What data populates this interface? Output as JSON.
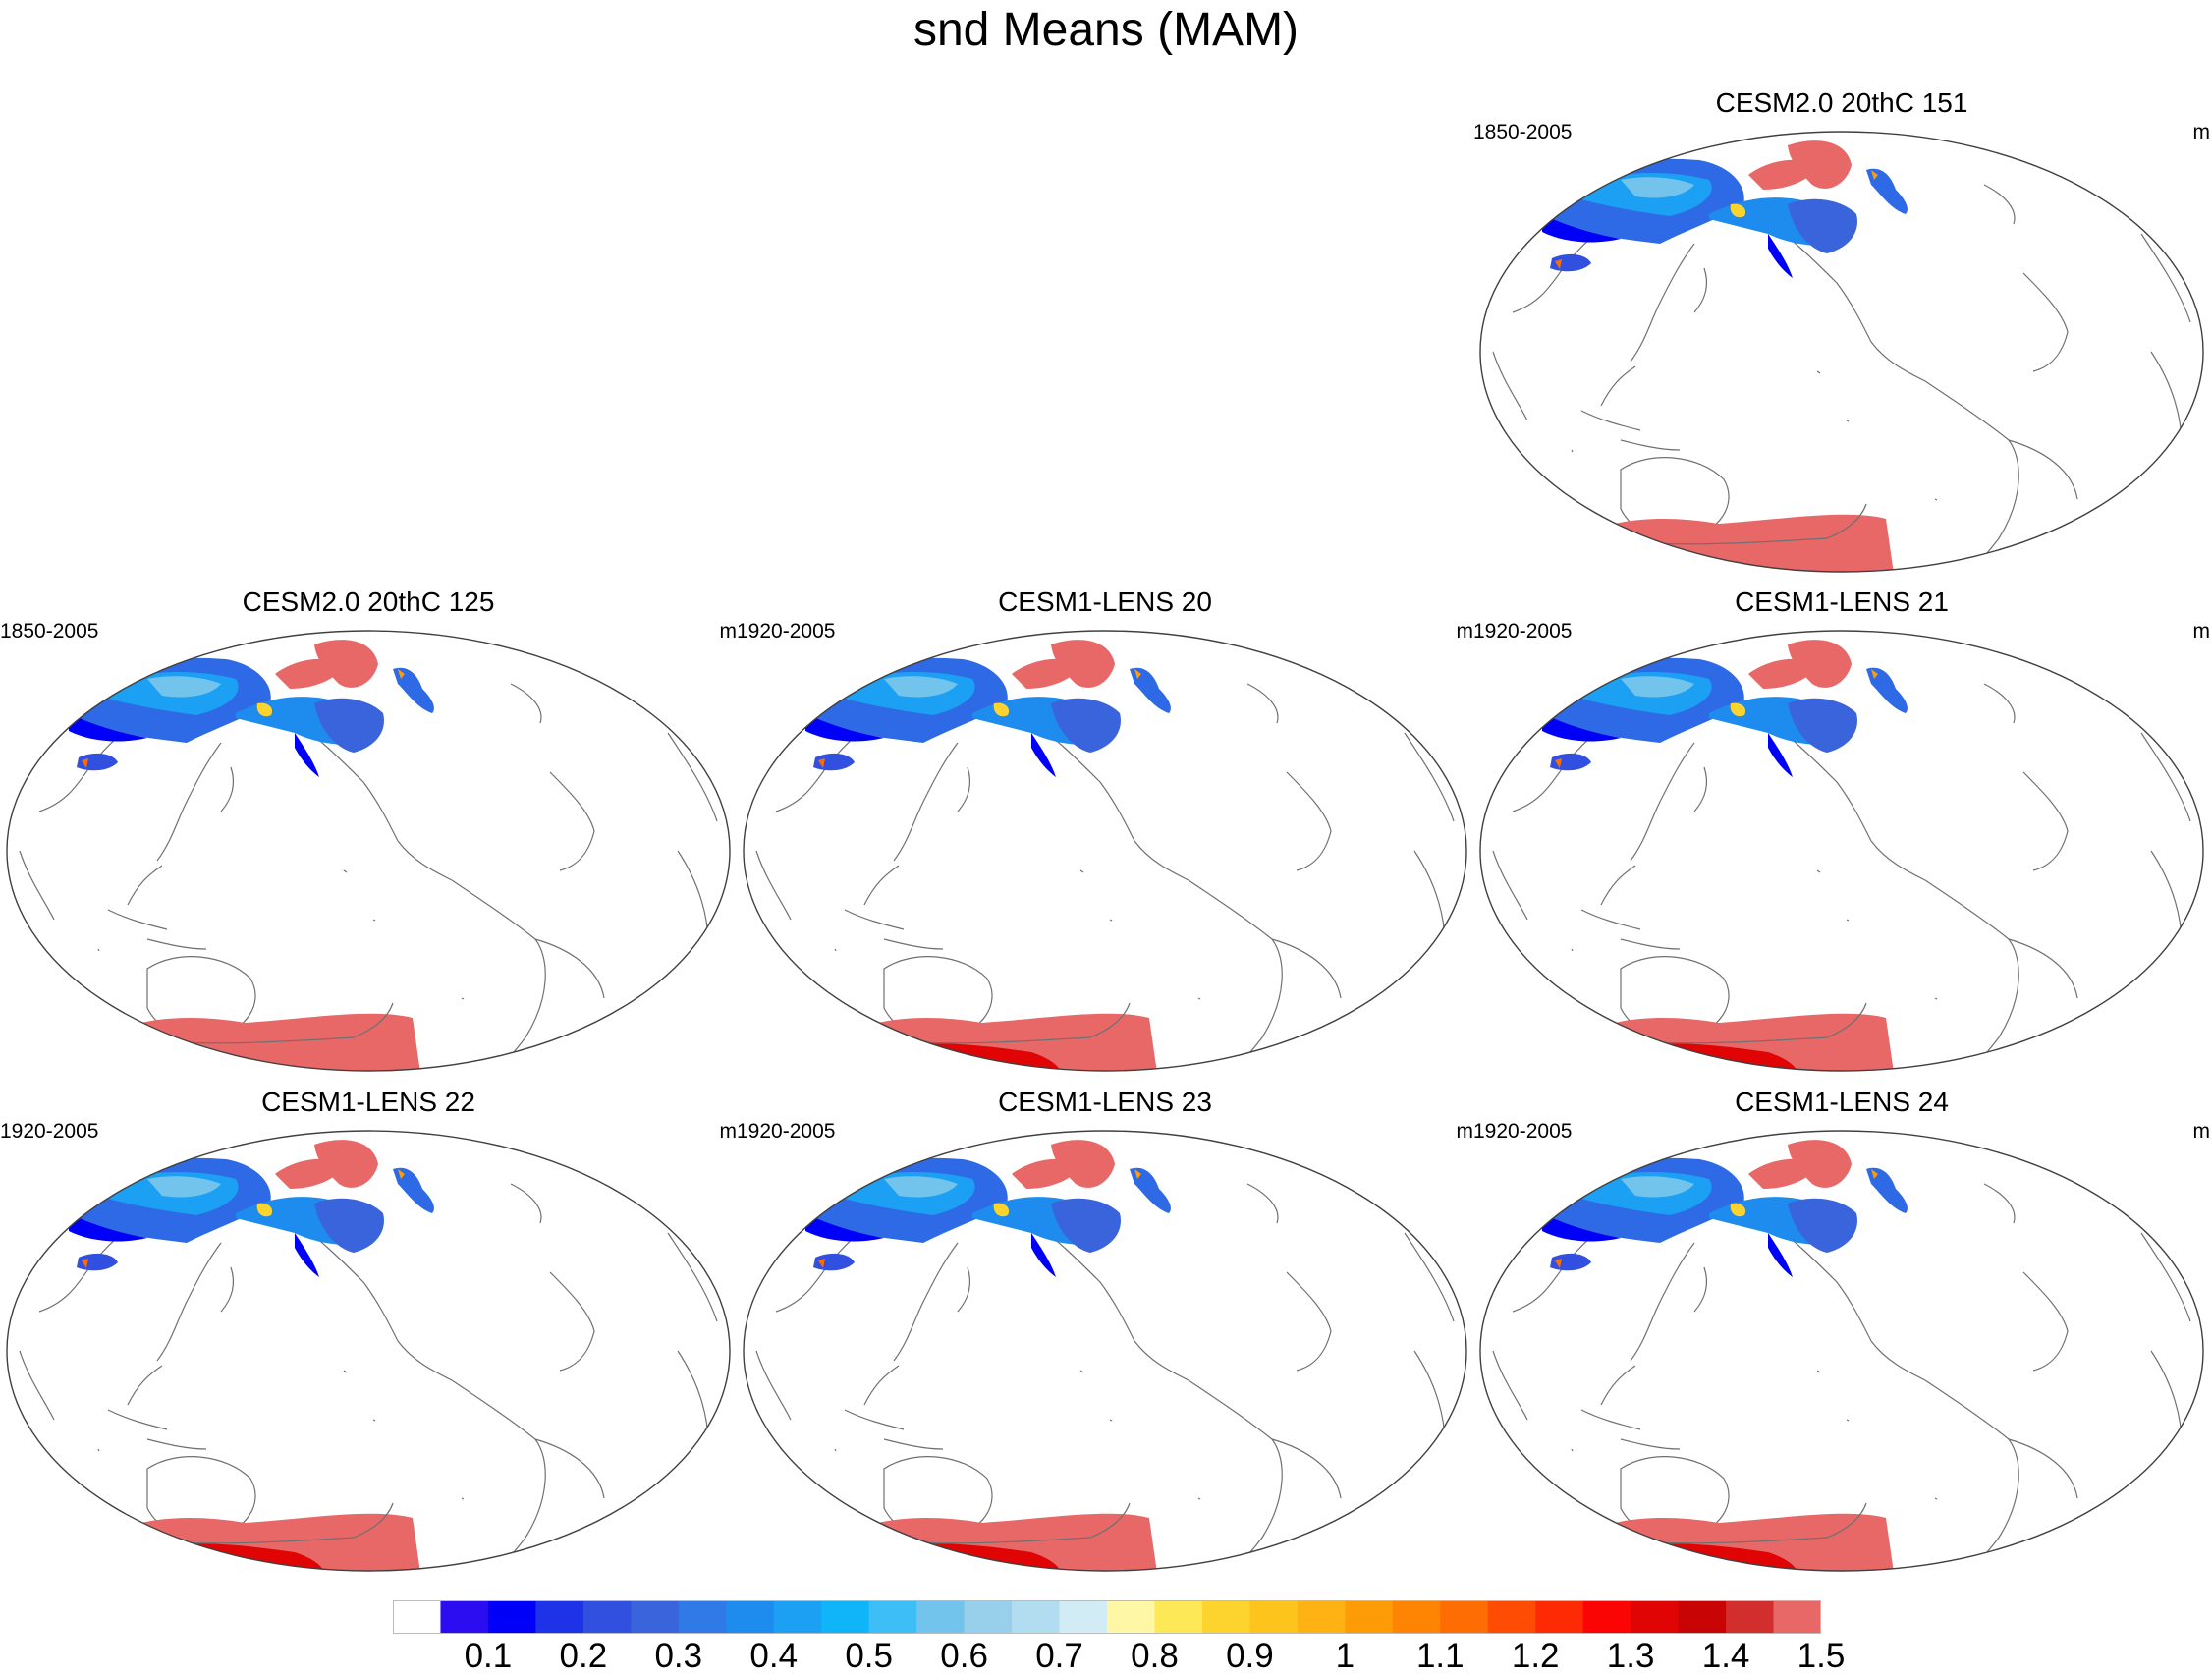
{
  "title": "snd Means (MAM)",
  "panels": [
    {
      "title": "CESM2.0 20thC 151",
      "period": "1850-2005",
      "units": "m",
      "variant": "cesm2"
    },
    {
      "title": "CESM2.0 20thC 125",
      "period": "1850-2005",
      "units": "m",
      "variant": "cesm2"
    },
    {
      "title": "CESM1-LENS 20",
      "period": "1920-2005",
      "units": "m",
      "variant": "lens"
    },
    {
      "title": "CESM1-LENS 21",
      "period": "1920-2005",
      "units": "m",
      "variant": "lens"
    },
    {
      "title": "CESM1-LENS 22",
      "period": "1920-2005",
      "units": "m",
      "variant": "lens"
    },
    {
      "title": "CESM1-LENS 23",
      "period": "1920-2005",
      "units": "m",
      "variant": "lens"
    },
    {
      "title": "CESM1-LENS 24",
      "period": "1920-2005",
      "units": "m",
      "variant": "lens"
    }
  ],
  "colorbar": {
    "labels": [
      "0.1",
      "0.2",
      "0.3",
      "0.4",
      "0.5",
      "0.6",
      "0.7",
      "0.8",
      "0.9",
      "1",
      "1.1",
      "1.2",
      "1.3",
      "1.4",
      "1.5"
    ],
    "colors": [
      "#ffffff",
      "#2c0cf0",
      "#0000f8",
      "#1e32e8",
      "#3250e0",
      "#3a64dc",
      "#2f7ae6",
      "#1e8cee",
      "#1ba0f4",
      "#10b4f8",
      "#3ebef6",
      "#72c4ec",
      "#98d0ec",
      "#b2dcf0",
      "#d2ecf6",
      "#fdf7a6",
      "#fde958",
      "#fdd32e",
      "#fec41e",
      "#feb214",
      "#fe9c08",
      "#fe8404",
      "#fe6c04",
      "#fe4c04",
      "#fe2a04",
      "#fa0404",
      "#e00404",
      "#c80404",
      "#d22e2e",
      "#e86868"
    ]
  },
  "chart_data": {
    "type": "map",
    "title": "snd Means (MAM)",
    "projection": "Robinson, Pacific-centered",
    "levels": [
      0.1,
      0.2,
      0.3,
      0.4,
      0.5,
      0.6,
      0.7,
      0.8,
      0.9,
      1,
      1.1,
      1.2,
      1.3,
      1.4,
      1.5
    ],
    "panels": [
      "CESM2.0 20thC 151",
      "CESM2.0 20thC 125",
      "CESM1-LENS 20",
      "CESM1-LENS 21",
      "CESM1-LENS 22",
      "CESM1-LENS 23",
      "CESM1-LENS 24"
    ]
  }
}
